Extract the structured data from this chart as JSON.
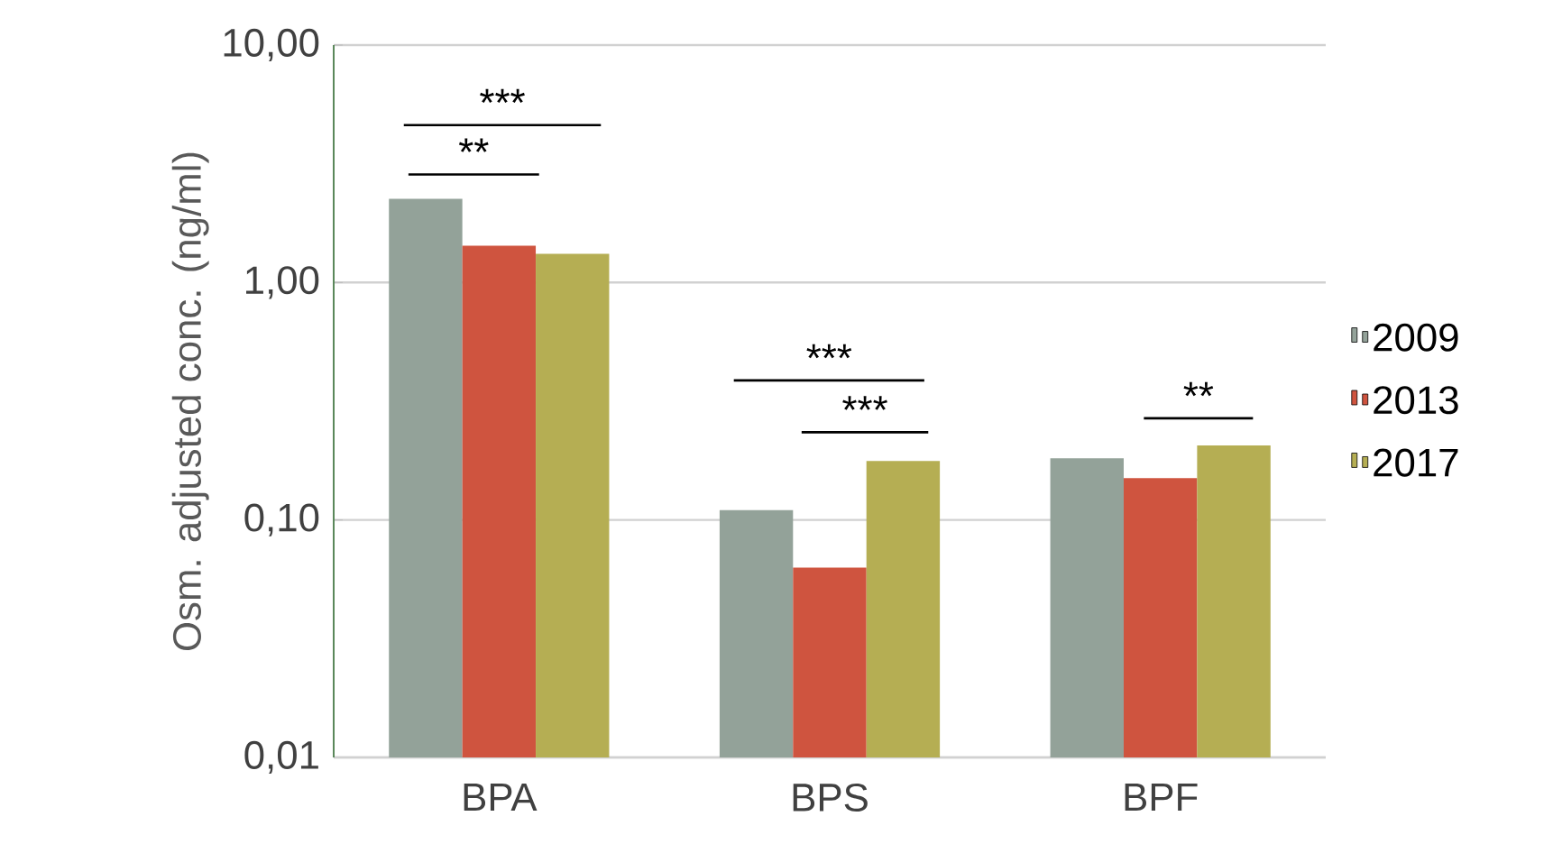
{
  "chart_data": {
    "type": "bar",
    "ylabel": "Osm. adjusted conc. (ng/ml)",
    "categories": [
      "BPA",
      "BPS",
      "BPF"
    ],
    "series": [
      {
        "name": "2009",
        "color": "#93a299",
        "values": [
          2.25,
          0.11,
          0.182
        ]
      },
      {
        "name": "2013",
        "color": "#cf543f",
        "values": [
          1.43,
          0.063,
          0.15
        ]
      },
      {
        "name": "2017",
        "color": "#b5ae53",
        "values": [
          1.32,
          0.177,
          0.206
        ]
      }
    ],
    "log": "y",
    "ylim": [
      0.01,
      10
    ],
    "yticks": [
      {
        "value": 0.01,
        "label": "0,01"
      },
      {
        "value": 0.1,
        "label": "0,10"
      },
      {
        "value": 1,
        "label": "1,00"
      },
      {
        "value": 10,
        "label": "10,00"
      }
    ],
    "grid": "y",
    "legend": "right",
    "annotations": [
      "***",
      "**",
      "***",
      "***",
      "**"
    ]
  }
}
